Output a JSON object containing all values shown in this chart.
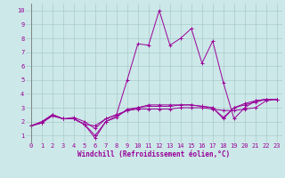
{
  "xlabel": "Windchill (Refroidissement éolien,°C)",
  "background_color": "#cce8e8",
  "grid_color": "#aacccc",
  "line_color": "#990099",
  "axis_color": "#666666",
  "xlim": [
    -0.5,
    23.5
  ],
  "ylim": [
    0.5,
    10.5
  ],
  "xticks": [
    0,
    1,
    2,
    3,
    4,
    5,
    6,
    7,
    8,
    9,
    10,
    11,
    12,
    13,
    14,
    15,
    16,
    17,
    18,
    19,
    20,
    21,
    22,
    23
  ],
  "yticks": [
    1,
    2,
    3,
    4,
    5,
    6,
    7,
    8,
    9,
    10
  ],
  "series": [
    [
      1.7,
      1.9,
      2.5,
      2.2,
      2.2,
      1.8,
      0.8,
      2.0,
      2.3,
      2.9,
      3.0,
      3.2,
      3.2,
      3.2,
      3.2,
      3.2,
      3.1,
      3.0,
      2.2,
      3.0,
      3.3,
      3.5,
      3.6,
      3.6
    ],
    [
      1.7,
      1.9,
      2.5,
      2.2,
      2.2,
      1.8,
      1.7,
      2.2,
      2.5,
      5.0,
      7.6,
      7.5,
      10.0,
      7.5,
      8.0,
      8.7,
      6.2,
      7.8,
      4.8,
      2.2,
      3.0,
      3.5,
      3.6,
      3.6
    ],
    [
      1.7,
      2.0,
      2.5,
      2.2,
      2.3,
      2.0,
      1.5,
      2.2,
      2.5,
      2.8,
      2.9,
      2.9,
      2.9,
      2.9,
      3.0,
      3.0,
      3.0,
      2.9,
      2.8,
      2.8,
      2.9,
      3.0,
      3.5,
      3.6
    ],
    [
      1.7,
      1.9,
      2.4,
      2.2,
      2.2,
      1.8,
      1.0,
      2.0,
      2.4,
      2.8,
      3.0,
      3.1,
      3.1,
      3.1,
      3.2,
      3.2,
      3.1,
      3.0,
      2.3,
      3.0,
      3.2,
      3.4,
      3.6,
      3.6
    ]
  ],
  "tick_fontsize": 5.0,
  "xlabel_fontsize": 5.5,
  "linewidth": 0.7,
  "markersize": 3.0
}
